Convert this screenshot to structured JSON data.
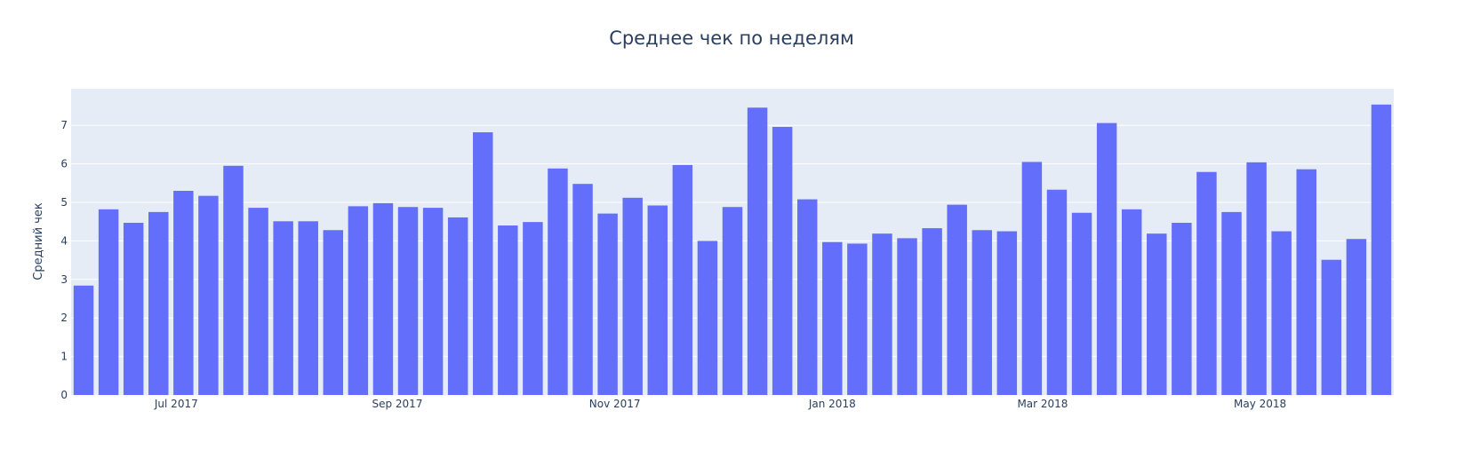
{
  "chart_data": {
    "type": "bar",
    "title": "Среднее чек по неделям",
    "xlabel": "",
    "ylabel": "Средний чек",
    "ylim": [
      0,
      7.95
    ],
    "yticks": [
      0,
      1,
      2,
      3,
      4,
      5,
      6,
      7
    ],
    "x_start": "2017-06-05",
    "x_end": "2018-06-11",
    "xticks": [
      {
        "date": "2017-07-01",
        "label": "Jul 2017"
      },
      {
        "date": "2017-09-01",
        "label": "Sep 2017"
      },
      {
        "date": "2017-11-01",
        "label": "Nov 2017"
      },
      {
        "date": "2018-01-01",
        "label": "Jan 2018"
      },
      {
        "date": "2018-03-01",
        "label": "Mar 2018"
      },
      {
        "date": "2018-05-01",
        "label": "May 2018"
      }
    ],
    "bar_color": "#636efa",
    "plot_bg": "#e5ecf6",
    "grid": true,
    "x": [
      "2017-06-05",
      "2017-06-12",
      "2017-06-19",
      "2017-06-26",
      "2017-07-03",
      "2017-07-10",
      "2017-07-17",
      "2017-07-24",
      "2017-07-31",
      "2017-08-07",
      "2017-08-14",
      "2017-08-21",
      "2017-08-28",
      "2017-09-04",
      "2017-09-11",
      "2017-09-18",
      "2017-09-25",
      "2017-10-02",
      "2017-10-09",
      "2017-10-16",
      "2017-10-23",
      "2017-10-30",
      "2017-11-06",
      "2017-11-13",
      "2017-11-20",
      "2017-11-27",
      "2017-12-04",
      "2017-12-11",
      "2017-12-18",
      "2017-12-25",
      "2018-01-01",
      "2018-01-08",
      "2018-01-15",
      "2018-01-22",
      "2018-01-29",
      "2018-02-05",
      "2018-02-12",
      "2018-02-19",
      "2018-02-26",
      "2018-03-05",
      "2018-03-12",
      "2018-03-19",
      "2018-03-26",
      "2018-04-02",
      "2018-04-09",
      "2018-04-16",
      "2018-04-23",
      "2018-04-30",
      "2018-05-07",
      "2018-05-14",
      "2018-05-21",
      "2018-05-28",
      "2018-06-04"
    ],
    "values": [
      2.84,
      4.82,
      4.47,
      4.75,
      5.3,
      5.17,
      5.95,
      4.86,
      4.51,
      4.51,
      4.28,
      4.9,
      4.98,
      4.88,
      4.86,
      4.61,
      6.82,
      4.4,
      4.49,
      5.88,
      5.48,
      4.71,
      5.12,
      4.92,
      5.97,
      4.0,
      4.88,
      7.46,
      6.96,
      5.08,
      3.97,
      3.93,
      4.19,
      4.07,
      4.33,
      4.94,
      4.28,
      4.25,
      6.05,
      5.33,
      4.73,
      7.06,
      4.82,
      4.19,
      4.47,
      5.79,
      4.75,
      6.04,
      4.25,
      5.86,
      3.51,
      4.05,
      7.54
    ]
  }
}
